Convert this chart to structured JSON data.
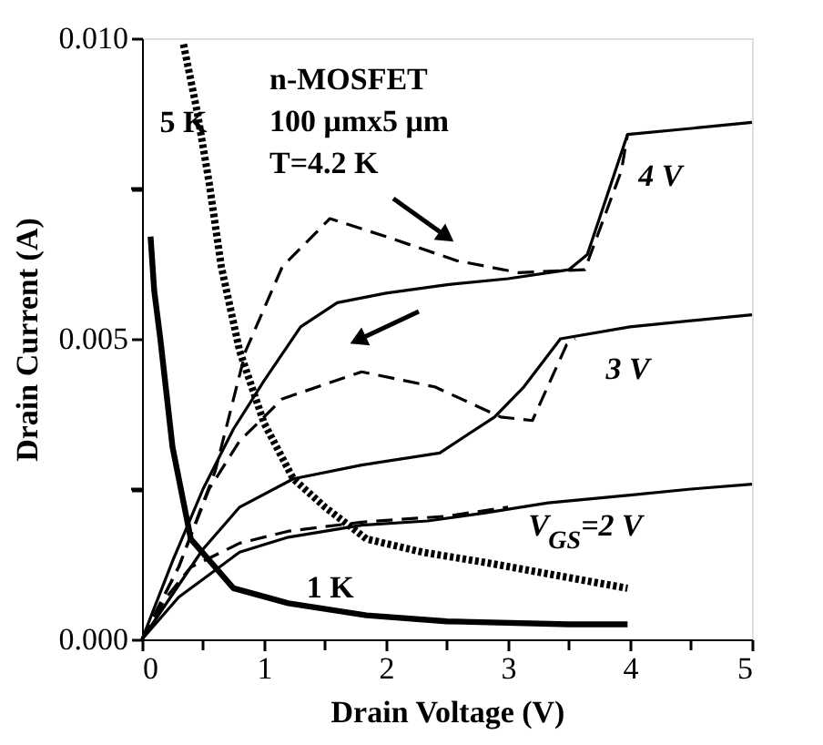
{
  "chart_data": {
    "type": "line",
    "xlabel": "Drain  Voltage  (V)",
    "ylabel": "Drain  Current  (A)",
    "xlim": [
      0,
      5
    ],
    "ylim": [
      0,
      0.01
    ],
    "xticks": [
      0,
      {
        "value": 0.5,
        "label": null
      },
      1,
      {
        "value": 1.5,
        "label": null
      },
      2,
      {
        "value": 2.5,
        "label": null
      },
      3,
      {
        "value": 3.5,
        "label": null
      },
      4,
      {
        "value": 4.5,
        "label": null
      },
      5
    ],
    "yticks": [
      {
        "value": 0,
        "label": "0.000"
      },
      {
        "value": 0.0025,
        "label": null
      },
      {
        "value": 0.005,
        "label": "0.005"
      },
      {
        "value": 0.0075,
        "label": null
      },
      {
        "value": 0.01,
        "label": "0.010"
      }
    ],
    "grid": false,
    "marker": "none",
    "series": [
      {
        "name": "4  V",
        "color": "#000000",
        "line_style": "solid",
        "x": [
          0,
          0.25,
          0.5,
          0.75,
          1,
          1.3,
          1.6,
          2,
          2.5,
          3,
          3.5,
          3.65,
          3.98,
          4.5,
          5
        ],
        "values": [
          0,
          0.0013,
          0.0025,
          0.0035,
          0.0043,
          0.0052,
          0.0056,
          0.00576,
          0.0059,
          0.006,
          0.00615,
          0.0064,
          0.0084,
          0.0085,
          0.0086
        ]
      },
      {
        "color": "#000000",
        "line_style": "dashed",
        "x": [
          0,
          0.3,
          0.6,
          0.85,
          1.15,
          1.54,
          2,
          2.58,
          3.09,
          3.63,
          3.93,
          3.98
        ],
        "values": [
          0,
          0.0012,
          0.0028,
          0.0048,
          0.0062,
          0.007,
          0.0067,
          0.0063,
          0.0061,
          0.00615,
          0.0078,
          0.0084
        ]
      },
      {
        "name": "3  V",
        "color": "#000000",
        "line_style": "solid",
        "x": [
          0,
          0.5,
          0.8,
          1.24,
          1.8,
          2.44,
          2.89,
          3.13,
          3.43,
          4,
          5
        ],
        "values": [
          0,
          0.0015,
          0.0022,
          0.00267,
          0.0029,
          0.0031,
          0.0037,
          0.0042,
          0.005,
          0.0052,
          0.0054
        ]
      },
      {
        "color": "#000000",
        "line_style": "dashed",
        "x": [
          0,
          0.3,
          0.55,
          0.8,
          1.15,
          1.8,
          2.4,
          2.94,
          3.2,
          3.48,
          3.55
        ],
        "values": [
          0,
          0.0012,
          0.0025,
          0.0033,
          0.004,
          0.00445,
          0.0042,
          0.0037,
          0.00364,
          0.0049,
          0.005
        ]
      },
      {
        "name": "V$_{GS}$=2  V",
        "color": "#000000",
        "line_style": "solid",
        "x": [
          0,
          0.3,
          0.5,
          0.8,
          1.2,
          1.8,
          2.34,
          2.8,
          3.33,
          4,
          4.5,
          5
        ],
        "values": [
          0,
          0.0007,
          0.001,
          0.00145,
          0.0017,
          0.0019,
          0.00197,
          0.0021,
          0.00227,
          0.0024,
          0.0025,
          0.00258
        ]
      },
      {
        "color": "#000000",
        "line_style": "dashed",
        "x": [
          0,
          0.2,
          0.4,
          0.8,
          1.2,
          1.8,
          2.5,
          3
        ],
        "values": [
          0,
          0.0007,
          0.0012,
          0.0016,
          0.0018,
          0.00195,
          0.00205,
          0.0022
        ]
      },
      {
        "name": "5 K",
        "color": "#000000",
        "line_style": "dotted",
        "x": [
          0.34,
          0.45,
          0.55,
          0.65,
          0.8,
          1,
          1.24,
          1.5,
          1.84,
          2.3,
          2.84,
          3.3,
          3.98
        ],
        "values": [
          0.0099,
          0.0088,
          0.0076,
          0.0062,
          0.0048,
          0.0036,
          0.00267,
          0.0022,
          0.00167,
          0.00145,
          0.00127,
          0.0011,
          0.00085
        ]
      },
      {
        "name": "1 K",
        "color": "#000000",
        "line_style": "solid",
        "x": [
          0.07,
          0.1,
          0.15,
          0.25,
          0.4,
          0.75,
          1.2,
          1.84,
          2.5,
          3.5,
          3.98
        ],
        "values": [
          0.0067,
          0.0058,
          0.005,
          0.0032,
          0.00167,
          0.00085,
          0.0006,
          0.0004,
          0.0003,
          0.00025,
          0.00025
        ]
      }
    ],
    "annotations": [
      "n-MOSFET",
      "100  μmx5  μm",
      "T=4.2  K"
    ]
  }
}
